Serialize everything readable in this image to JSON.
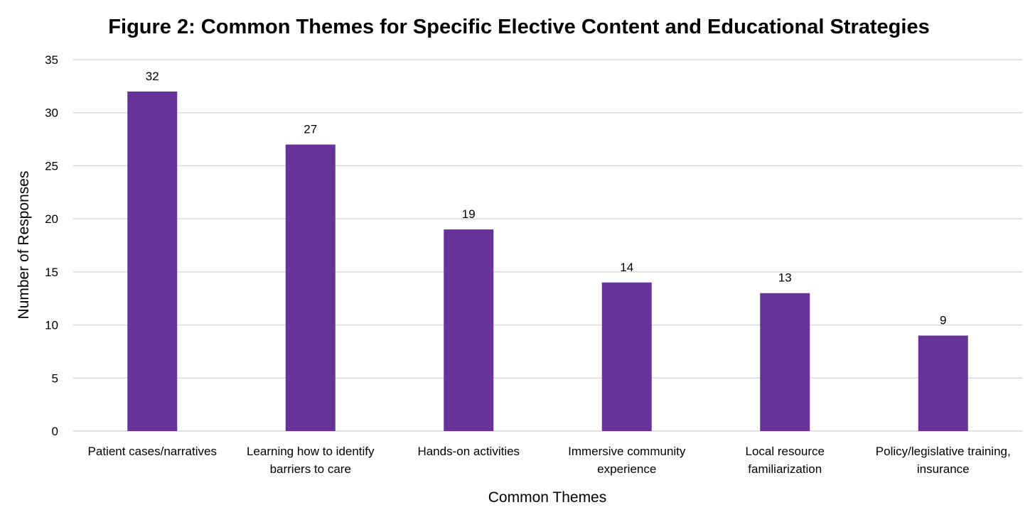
{
  "chart_data": {
    "type": "bar",
    "title": "Figure 2: Common Themes for Specific Elective Content and Educational Strategies",
    "xlabel": "Common Themes",
    "ylabel": "Number of Responses",
    "categories": [
      [
        "Patient cases/narratives"
      ],
      [
        "Learning how to identify",
        "barriers to care"
      ],
      [
        "Hands-on activities"
      ],
      [
        "Immersive community",
        "experience"
      ],
      [
        "Local resource",
        "familiarization"
      ],
      [
        "Policy/legislative training,",
        "insurance"
      ]
    ],
    "values": [
      32,
      27,
      19,
      14,
      13,
      9
    ],
    "ylim": [
      0,
      35
    ],
    "yticks": [
      0,
      5,
      10,
      15,
      20,
      25,
      30,
      35
    ],
    "bar_color": "#673399",
    "grid": true,
    "legend": "none"
  }
}
